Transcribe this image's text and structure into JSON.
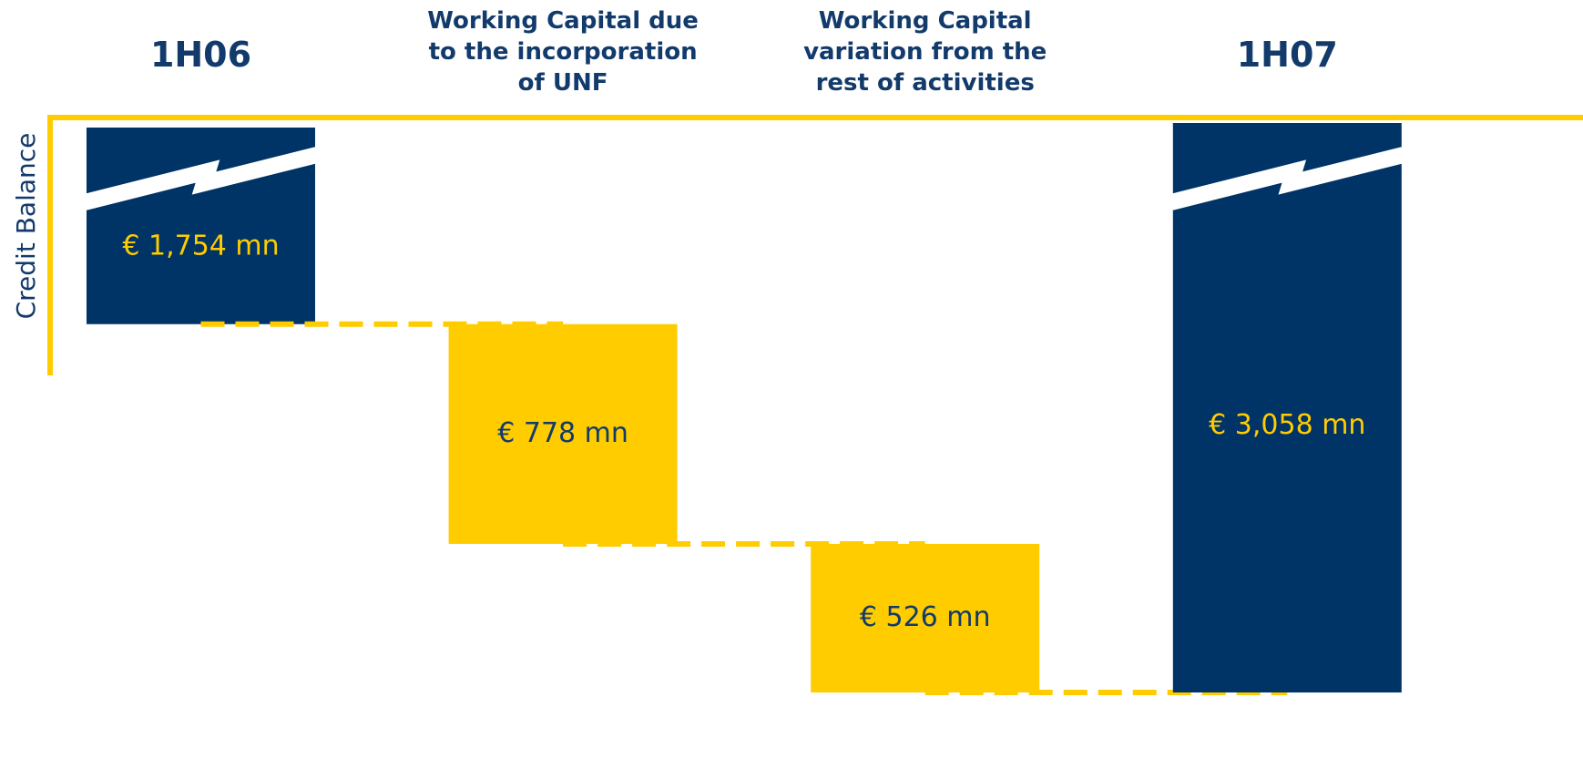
{
  "chart_data": {
    "type": "waterfall",
    "y_label": "Credit Balance",
    "categories": [
      "1H06",
      "Working Capital due to the incorporation of UNF",
      "Working Capital variation from the rest of activities",
      "1H07"
    ],
    "values": [
      1754,
      778,
      526,
      3058
    ],
    "value_labels": [
      "€ 1,754 mn",
      "€ 778 mn",
      "€ 526 mn",
      "€ 3,058 mn"
    ],
    "colors": [
      "#003366",
      "#FFCC00",
      "#FFCC00",
      "#003366"
    ],
    "axis_color": "#FFCC00"
  }
}
